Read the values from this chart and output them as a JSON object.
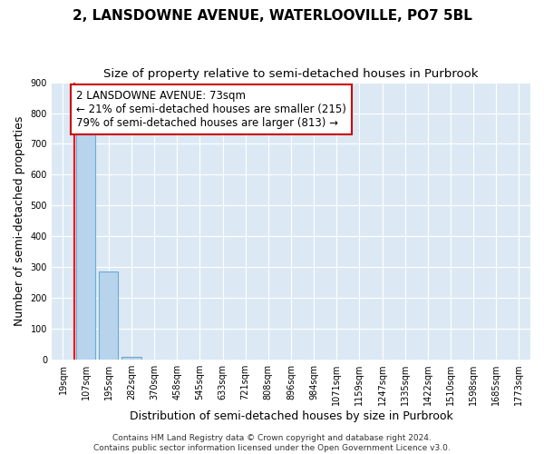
{
  "title": "2, LANSDOWNE AVENUE, WATERLOOVILLE, PO7 5BL",
  "subtitle": "Size of property relative to semi-detached houses in Purbrook",
  "xlabel": "Distribution of semi-detached houses by size in Purbrook",
  "ylabel": "Number of semi-detached properties",
  "footer": "Contains HM Land Registry data © Crown copyright and database right 2024.\nContains public sector information licensed under the Open Government Licence v3.0.",
  "annotation_text": "2 LANSDOWNE AVENUE: 73sqm\n← 21% of semi-detached houses are smaller (215)\n79% of semi-detached houses are larger (813) →",
  "bin_labels": [
    "19sqm",
    "107sqm",
    "195sqm",
    "282sqm",
    "370sqm",
    "458sqm",
    "545sqm",
    "633sqm",
    "721sqm",
    "808sqm",
    "896sqm",
    "984sqm",
    "1071sqm",
    "1159sqm",
    "1247sqm",
    "1335sqm",
    "1422sqm",
    "1510sqm",
    "1598sqm",
    "1685sqm",
    "1773sqm"
  ],
  "bar_values": [
    0,
    750,
    285,
    10,
    0,
    0,
    0,
    0,
    0,
    0,
    0,
    0,
    0,
    0,
    0,
    0,
    0,
    0,
    0,
    0,
    0
  ],
  "bar_color": "#b8d4ec",
  "bar_edge_color": "#6aaad4",
  "red_line_x": 0.5,
  "ylim": [
    0,
    900
  ],
  "yticks": [
    0,
    100,
    200,
    300,
    400,
    500,
    600,
    700,
    800,
    900
  ],
  "fig_bg_color": "#ffffff",
  "plot_bg_color": "#dce9f5",
  "grid_color": "#ffffff",
  "annotation_box_facecolor": "#ffffff",
  "annotation_box_edgecolor": "#cc0000",
  "title_fontsize": 11,
  "subtitle_fontsize": 9.5,
  "axis_label_fontsize": 9,
  "tick_fontsize": 7,
  "annotation_fontsize": 8.5,
  "footer_fontsize": 6.5
}
